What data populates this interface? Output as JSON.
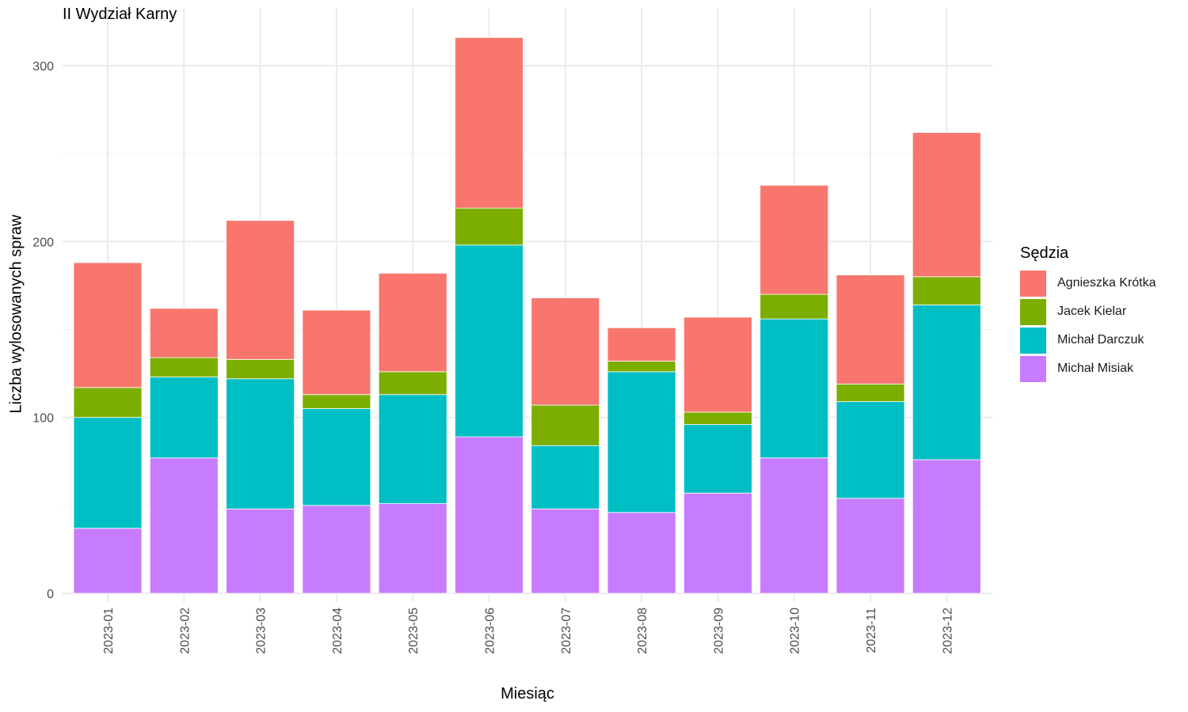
{
  "chart_data": {
    "type": "bar",
    "stacked": true,
    "title": "II Wydział Karny",
    "xlabel": "Miesiąc",
    "ylabel": "Liczba wylosowanych spraw",
    "ylim": [
      0,
      330
    ],
    "yticks": [
      0,
      100,
      200,
      300
    ],
    "grid": true,
    "legend_position": "right",
    "legend_title": "Sędzia",
    "categories": [
      "2023-01",
      "2023-02",
      "2023-03",
      "2023-04",
      "2023-05",
      "2023-06",
      "2023-07",
      "2023-08",
      "2023-09",
      "2023-10",
      "2023-11",
      "2023-12"
    ],
    "series": [
      {
        "name": "Michał Misiak",
        "color": "#C77CFF",
        "values": [
          37,
          77,
          48,
          50,
          51,
          89,
          48,
          46,
          57,
          77,
          54,
          76
        ]
      },
      {
        "name": "Michał Darczuk",
        "color": "#00BFC4",
        "values": [
          63,
          46,
          74,
          55,
          62,
          109,
          36,
          80,
          39,
          79,
          55,
          88
        ]
      },
      {
        "name": "Jacek Kielar",
        "color": "#7CAE00",
        "values": [
          17,
          11,
          11,
          8,
          13,
          21,
          23,
          6,
          7,
          14,
          10,
          16
        ]
      },
      {
        "name": "Agnieszka Krótka",
        "color": "#F8766D",
        "values": [
          71,
          28,
          79,
          48,
          56,
          97,
          61,
          19,
          54,
          62,
          62,
          82
        ]
      }
    ],
    "legend_order": [
      "Agnieszka Krótka",
      "Jacek Kielar",
      "Michał Darczuk",
      "Michał Misiak"
    ]
  }
}
